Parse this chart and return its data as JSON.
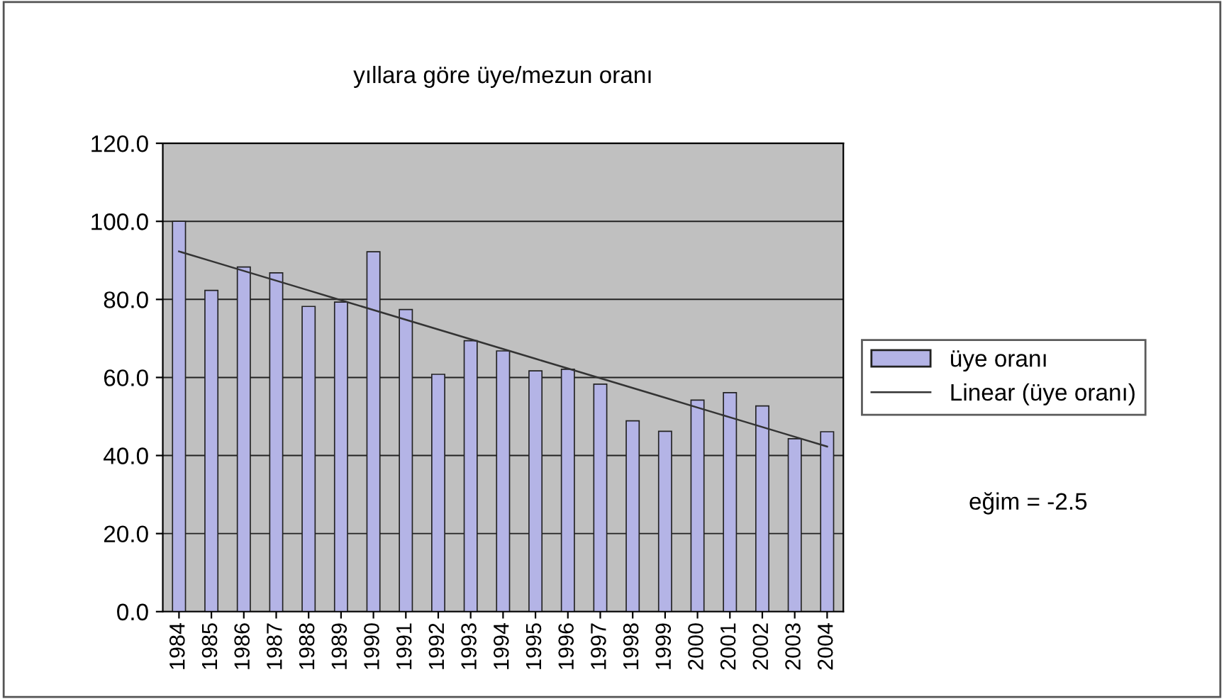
{
  "chart_data": {
    "type": "bar",
    "title": "yıllara göre üye/mezun oranı",
    "categories": [
      "1984",
      "1985",
      "1986",
      "1987",
      "1988",
      "1989",
      "1990",
      "1991",
      "1992",
      "1993",
      "1994",
      "1995",
      "1996",
      "1997",
      "1998",
      "1999",
      "2000",
      "2001",
      "2002",
      "2003",
      "2004"
    ],
    "series": [
      {
        "name": "üye oranı",
        "color": "#b4b4e6",
        "values": [
          100,
          82.3,
          88.3,
          86.8,
          78.2,
          79.3,
          92.2,
          77.4,
          60.8,
          69.4,
          66.8,
          61.7,
          62.1,
          58.3,
          48.9,
          46.2,
          54.2,
          56.1,
          52.7,
          44.3,
          46.1
        ]
      },
      {
        "name": "Linear (üye oranı)",
        "type": "line",
        "color": "#333333",
        "values": [
          92.3,
          89.8,
          87.3,
          84.8,
          82.3,
          79.8,
          77.3,
          74.8,
          72.3,
          69.8,
          67.3,
          64.8,
          62.3,
          59.8,
          57.3,
          54.8,
          52.3,
          49.8,
          47.3,
          44.8,
          42.3
        ]
      }
    ],
    "ylim": [
      0,
      120
    ],
    "yticks": [
      {
        "value": 0,
        "label": "0.0"
      },
      {
        "value": 20,
        "label": "20.0"
      },
      {
        "value": 40,
        "label": "40.0"
      },
      {
        "value": 60,
        "label": "60.0"
      },
      {
        "value": 80,
        "label": "80.0"
      },
      {
        "value": 100,
        "label": "100.0"
      },
      {
        "value": 120,
        "label": "120.0"
      }
    ],
    "grid": "y",
    "legend": "right",
    "annotations": [
      "eğim = -2.5"
    ]
  }
}
